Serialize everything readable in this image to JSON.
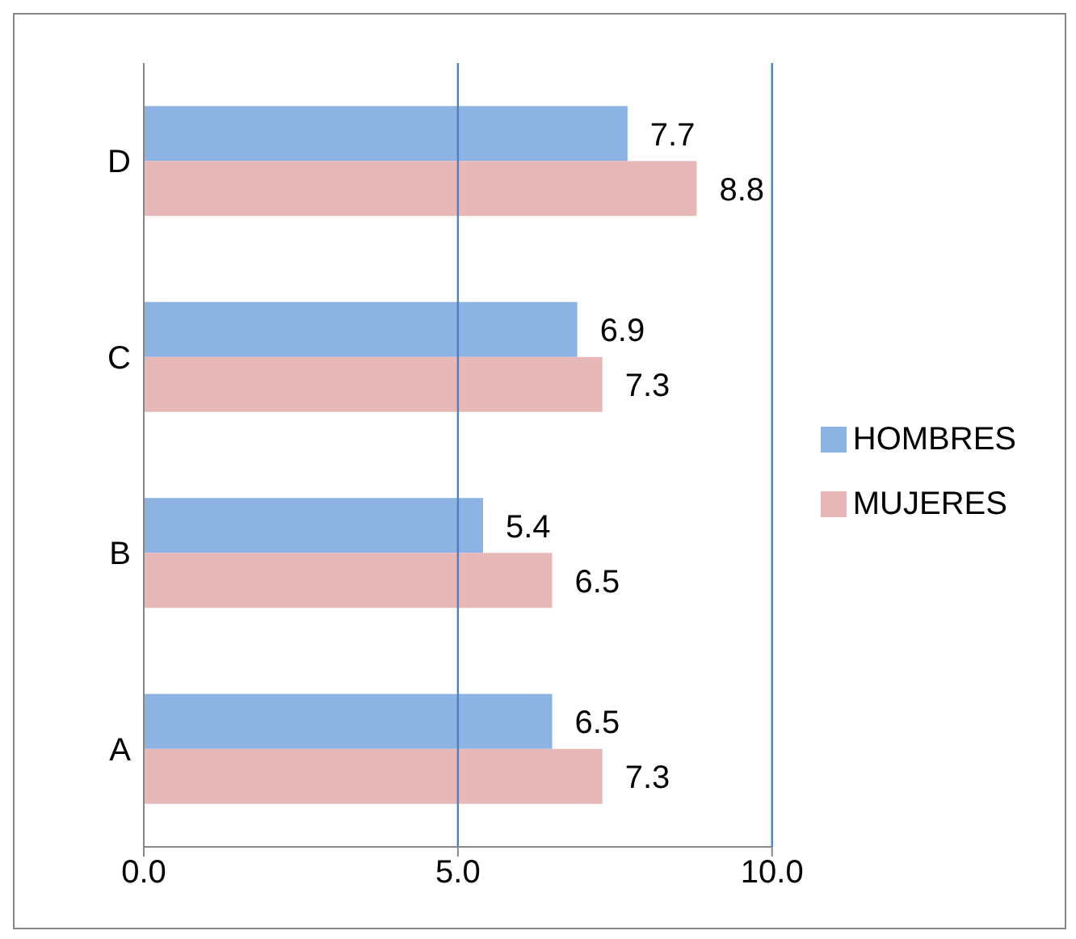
{
  "chart_data": {
    "type": "bar",
    "orientation": "horizontal",
    "categories": [
      "D",
      "C",
      "B",
      "A"
    ],
    "series": [
      {
        "name": "HOMBRES",
        "color": "#8db3e2",
        "values": [
          7.7,
          6.9,
          5.4,
          6.5
        ]
      },
      {
        "name": "MUJERES",
        "color": "#e6b9b8",
        "values": [
          8.8,
          7.3,
          6.5,
          7.3
        ]
      }
    ],
    "xlim": [
      0,
      10
    ],
    "xticks": [
      {
        "value": 0,
        "label": "0.0"
      },
      {
        "value": 5,
        "label": "5.0"
      },
      {
        "value": 10,
        "label": "10.0"
      }
    ],
    "ref_lines": [
      {
        "axis": "x",
        "value": 5,
        "color": "#4f81bd"
      },
      {
        "axis": "x",
        "value": 10,
        "color": "#4f81bd"
      }
    ],
    "legend": "right",
    "data_labels": true
  }
}
